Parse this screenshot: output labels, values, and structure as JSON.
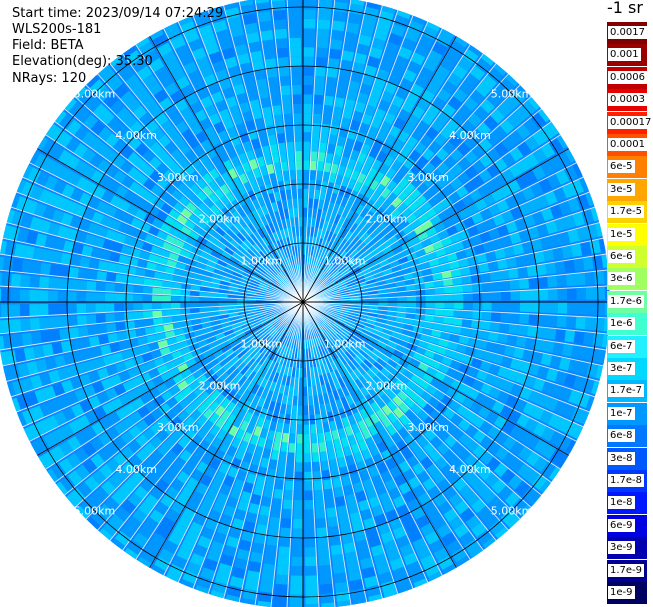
{
  "info": {
    "start_time": "Start time: 2023/09/14 07:24:29",
    "instrument": "WLS200s-181",
    "field": "Field: BETA",
    "elevation": "Elevation(deg): 35.30",
    "nrays": "NRays: 120"
  },
  "colorbar": {
    "title": "-1 sr",
    "labels": [
      "0.0017",
      "0.001",
      "0.0006",
      "0.0003",
      "0.00017",
      "0.0001",
      "6e-5",
      "3e-5",
      "1.7e-5",
      "1e-5",
      "6e-6",
      "3e-6",
      "1.7e-6",
      "1e-6",
      "6e-7",
      "3e-7",
      "1.7e-7",
      "1e-7",
      "6e-8",
      "3e-8",
      "1.7e-8",
      "1e-8",
      "6e-9",
      "3e-9",
      "1.7e-9",
      "1e-9"
    ],
    "colors": [
      "#800000",
      "#9a0000",
      "#c00000",
      "#e60000",
      "#ff2000",
      "#ff5000",
      "#ff8000",
      "#ffa500",
      "#ffd000",
      "#ffff00",
      "#d0ff30",
      "#a0ff60",
      "#70ffa0",
      "#40ffd0",
      "#20f0ff",
      "#00d8ff",
      "#00b8ff",
      "#0098ff",
      "#0078ff",
      "#0058ff",
      "#0038ff",
      "#0018ff",
      "#0000e0",
      "#0000b0",
      "#000090",
      "#000060"
    ]
  },
  "chart_data": {
    "type": "heatmap",
    "projection": "polar (PPI scan)",
    "field": "BETA",
    "unit": "-1 sr",
    "elevation_deg": 35.3,
    "n_rays": 120,
    "range_rings": [
      {
        "range_km": 1.0,
        "label": "1.00km"
      },
      {
        "range_km": 2.0,
        "label": "2.00km"
      },
      {
        "range_km": 3.0,
        "label": "3.00km"
      },
      {
        "range_km": 4.0,
        "label": "4.00km"
      },
      {
        "range_km": 5.0,
        "label": "5.00km"
      }
    ],
    "max_range_km": 5.2,
    "spoke_step_deg": 30,
    "background_beta": "3e-8",
    "enhanced_layer": {
      "range_km": 2.4,
      "beta": "1.7e-7"
    },
    "grid": true,
    "legend": "right colorbar"
  }
}
